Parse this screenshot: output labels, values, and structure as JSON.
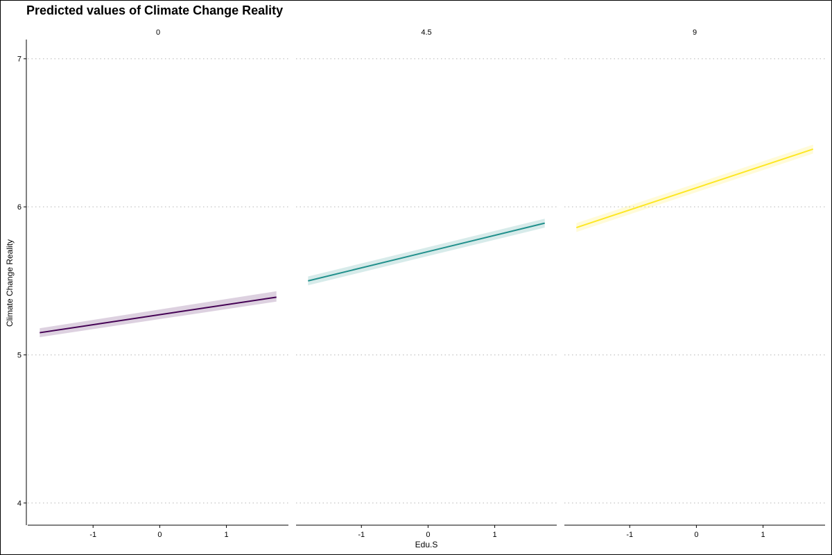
{
  "chart_data": {
    "type": "line",
    "title": "Predicted values of Climate Change Reality",
    "xlabel": "Edu.S",
    "ylabel": "Climate Change Reality",
    "ylim": [
      3.85,
      7.13
    ],
    "yticks": [
      4,
      5,
      6,
      7
    ],
    "xlim": [
      -1.98,
      1.93
    ],
    "xticks": [
      -1,
      0,
      1
    ],
    "grid": "horizontal-dotted",
    "panels": [
      {
        "label": "0",
        "color": "#440154",
        "x": [
          -1.8,
          1.75
        ],
        "y": [
          5.15,
          5.39
        ],
        "ci_low": [
          5.12,
          5.36
        ],
        "ci_high": [
          5.18,
          5.43
        ]
      },
      {
        "label": "4.5",
        "color": "#21908C",
        "x": [
          -1.8,
          1.75
        ],
        "y": [
          5.5,
          5.89
        ],
        "ci_low": [
          5.47,
          5.86
        ],
        "ci_high": [
          5.53,
          5.92
        ]
      },
      {
        "label": "9",
        "color": "#FDE725",
        "x": [
          -1.8,
          1.75
        ],
        "y": [
          5.86,
          6.39
        ],
        "ci_low": [
          5.83,
          6.36
        ],
        "ci_high": [
          5.89,
          6.42
        ]
      }
    ]
  }
}
